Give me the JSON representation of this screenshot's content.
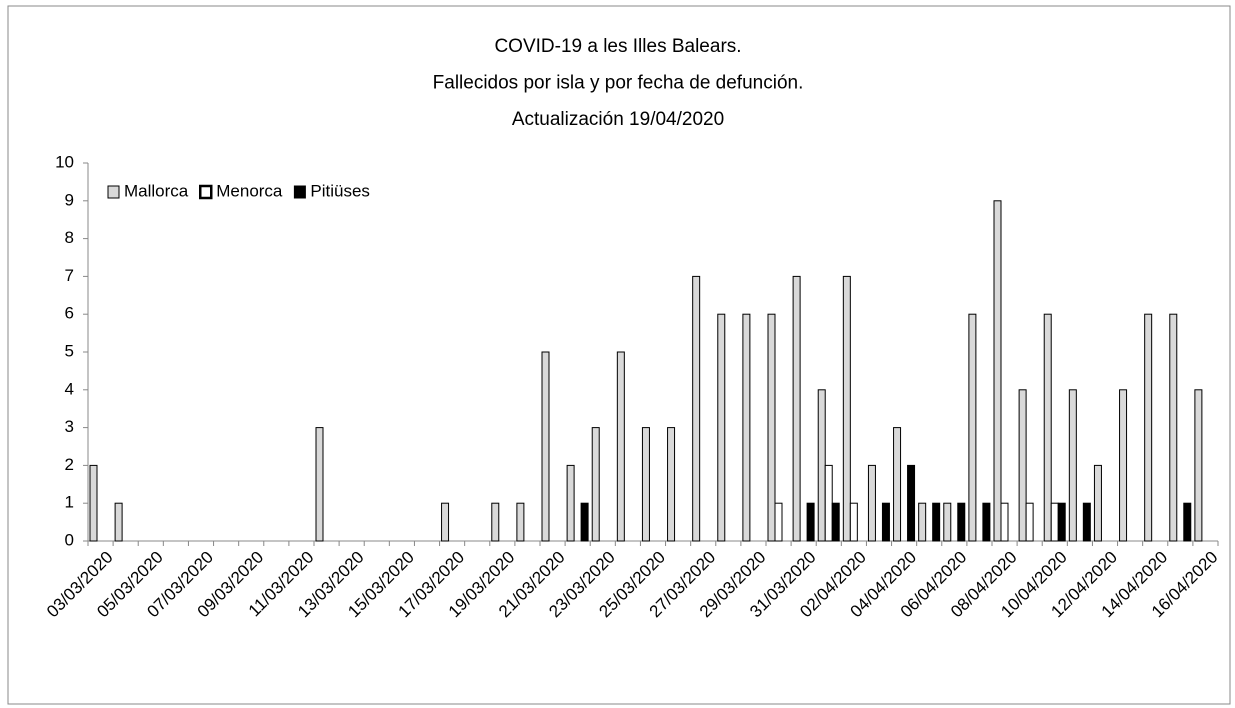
{
  "chart_data": {
    "type": "bar",
    "title": [
      "COVID-19 a les Illes Balears.",
      "Fallecidos  por isla y por fecha de defunción.",
      "Actualización  19/04/2020"
    ],
    "categories": [
      "03/03/2020",
      null,
      "05/03/2020",
      null,
      "07/03/2020",
      null,
      "09/03/2020",
      null,
      "11/03/2020",
      null,
      "13/03/2020",
      null,
      "15/03/2020",
      null,
      "17/03/2020",
      null,
      "19/03/2020",
      null,
      "21/03/2020",
      null,
      "23/03/2020",
      null,
      "25/03/2020",
      null,
      "27/03/2020",
      null,
      "29/03/2020",
      null,
      "31/03/2020",
      null,
      "02/04/2020",
      null,
      "04/04/2020",
      null,
      "06/04/2020",
      null,
      "08/04/2020",
      null,
      "10/04/2020",
      null,
      "12/04/2020",
      null,
      "14/04/2020",
      null,
      "16/04/2020"
    ],
    "series": [
      {
        "name": "Mallorca",
        "color": "#d9d9d9",
        "values": [
          2,
          1,
          0,
          0,
          0,
          0,
          0,
          0,
          0,
          3,
          0,
          0,
          0,
          0,
          1,
          0,
          1,
          1,
          5,
          2,
          3,
          5,
          3,
          3,
          7,
          6,
          6,
          6,
          7,
          4,
          7,
          2,
          3,
          1,
          1,
          6,
          9,
          4,
          6,
          4,
          2,
          4,
          6,
          6,
          4
        ]
      },
      {
        "name": "Menorca",
        "color": "#ffffff",
        "values": [
          0,
          0,
          0,
          0,
          0,
          0,
          0,
          0,
          0,
          0,
          0,
          0,
          0,
          0,
          0,
          0,
          0,
          0,
          0,
          0,
          0,
          0,
          0,
          0,
          0,
          0,
          0,
          1,
          0,
          2,
          1,
          0,
          0,
          0,
          0,
          0,
          1,
          1,
          1,
          0,
          0,
          0,
          0,
          0,
          0
        ]
      },
      {
        "name": "Pitiüses",
        "color": "#000000",
        "values": [
          0,
          0,
          0,
          0,
          0,
          0,
          0,
          0,
          0,
          0,
          0,
          0,
          0,
          0,
          0,
          0,
          0,
          0,
          0,
          1,
          0,
          0,
          0,
          0,
          0,
          0,
          0,
          0,
          1,
          1,
          0,
          1,
          2,
          1,
          1,
          1,
          0,
          0,
          1,
          1,
          0,
          0,
          0,
          1,
          0
        ]
      }
    ],
    "ylim": [
      0,
      10
    ],
    "yticks": [
      0,
      1,
      2,
      3,
      4,
      5,
      6,
      7,
      8,
      9,
      10
    ],
    "legend": "top-left"
  }
}
